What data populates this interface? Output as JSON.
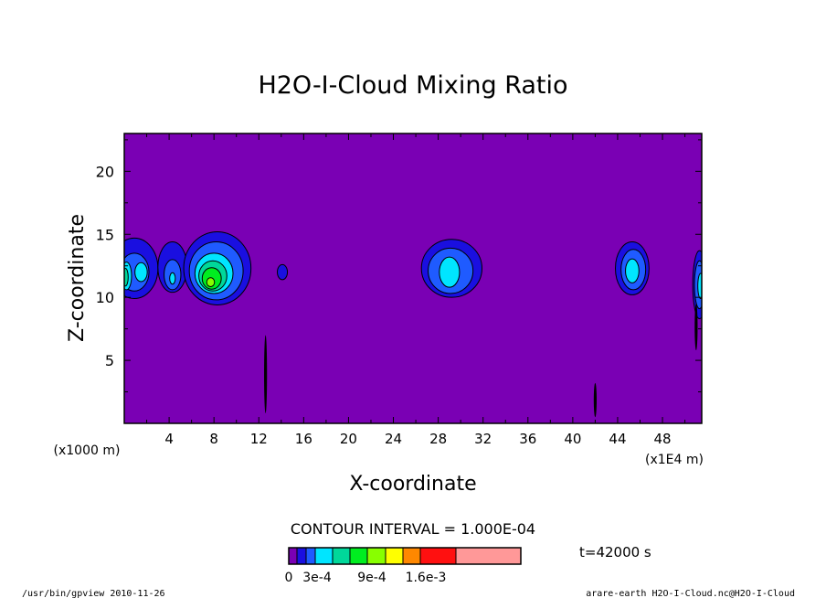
{
  "chart_data": {
    "type": "heatmap",
    "title": "H2O-I-Cloud Mixing Ratio",
    "xlabel": "X-coordinate",
    "ylabel": "Z-coordinate",
    "x_unit_left": "(x1000 m)",
    "x_unit_right": "(x1E4 m)",
    "xlim": [
      0,
      51.5
    ],
    "ylim": [
      0,
      23
    ],
    "x_ticks": [
      "4",
      "8",
      "12",
      "16",
      "20",
      "24",
      "28",
      "32",
      "36",
      "40",
      "44",
      "48"
    ],
    "y_ticks": [
      "5",
      "10",
      "15",
      "20"
    ],
    "background_color": "#7a00b4",
    "contour_interval_text": "CONTOUR INTERVAL = 1.000E-04",
    "time_label": "t=42000 s",
    "colorbar": {
      "colors": [
        "#7a00b4",
        "#1a0fe0",
        "#1f5bff",
        "#00e5ff",
        "#00d89a",
        "#00ee20",
        "#88ff00",
        "#ffff00",
        "#ff8800",
        "#ff1010",
        "#ff9898"
      ],
      "labels": [
        "0",
        "3e-4",
        "9e-4",
        "1.6e-3"
      ]
    },
    "levels": [
      {
        "color": "#1a0fe0",
        "blobs": [
          {
            "cx": 0.9,
            "cy": 12.3,
            "rx": 2.1,
            "ry": 2.4
          },
          {
            "cx": 4.3,
            "cy": 12.4,
            "rx": 1.3,
            "ry": 2.0
          },
          {
            "cx": 8.3,
            "cy": 12.3,
            "rx": 3.0,
            "ry": 2.9
          },
          {
            "cx": 14.1,
            "cy": 12.0,
            "rx": 0.45,
            "ry": 0.6
          },
          {
            "cx": 29.2,
            "cy": 12.3,
            "rx": 2.7,
            "ry": 2.3
          },
          {
            "cx": 45.3,
            "cy": 12.3,
            "rx": 1.5,
            "ry": 2.1
          },
          {
            "cx": 51.3,
            "cy": 11.0,
            "rx": 0.6,
            "ry": 2.7
          }
        ]
      },
      {
        "color": "#1f5bff",
        "blobs": [
          {
            "cx": 0.9,
            "cy": 12.0,
            "rx": 1.3,
            "ry": 1.5
          },
          {
            "cx": 4.3,
            "cy": 11.8,
            "rx": 0.75,
            "ry": 1.2
          },
          {
            "cx": 8.2,
            "cy": 12.1,
            "rx": 2.4,
            "ry": 2.3
          },
          {
            "cx": 29.1,
            "cy": 12.1,
            "rx": 2.0,
            "ry": 1.8
          },
          {
            "cx": 45.4,
            "cy": 12.2,
            "rx": 1.1,
            "ry": 1.6
          },
          {
            "cx": 51.3,
            "cy": 11.0,
            "rx": 0.45,
            "ry": 1.9
          }
        ]
      },
      {
        "color": "#00e5ff",
        "blobs": [
          {
            "cx": 1.5,
            "cy": 12.0,
            "rx": 0.55,
            "ry": 0.75
          },
          {
            "cx": 0.2,
            "cy": 11.7,
            "rx": 0.45,
            "ry": 1.1
          },
          {
            "cx": 4.3,
            "cy": 11.5,
            "rx": 0.25,
            "ry": 0.45
          },
          {
            "cx": 8.0,
            "cy": 11.9,
            "rx": 1.7,
            "ry": 1.6
          },
          {
            "cx": 29.0,
            "cy": 12.0,
            "rx": 0.9,
            "ry": 1.2
          },
          {
            "cx": 45.3,
            "cy": 12.1,
            "rx": 0.6,
            "ry": 0.95
          },
          {
            "cx": 51.4,
            "cy": 10.9,
            "rx": 0.25,
            "ry": 1.0
          }
        ]
      },
      {
        "color": "#00d89a",
        "blobs": [
          {
            "cx": 7.9,
            "cy": 11.7,
            "rx": 1.25,
            "ry": 1.2
          },
          {
            "cx": 0.1,
            "cy": 11.6,
            "rx": 0.25,
            "ry": 0.7
          }
        ]
      },
      {
        "color": "#00ee20",
        "blobs": [
          {
            "cx": 7.8,
            "cy": 11.5,
            "rx": 0.85,
            "ry": 0.85
          }
        ]
      },
      {
        "color": "#88ff00",
        "blobs": [
          {
            "cx": 7.7,
            "cy": 11.2,
            "rx": 0.35,
            "ry": 0.35
          }
        ]
      }
    ],
    "thin_features": [
      {
        "x": 12.6,
        "y0": 0.8,
        "y1": 7.0
      },
      {
        "x": 42.0,
        "y0": 0.5,
        "y1": 3.2
      },
      {
        "x": 51.0,
        "y0": 5.8,
        "y1": 9.5
      }
    ]
  },
  "footer": {
    "left": "/usr/bin/gpview   2010-11-26",
    "right": "arare-earth_H2O-I-Cloud.nc@H2O-I-Cloud"
  }
}
